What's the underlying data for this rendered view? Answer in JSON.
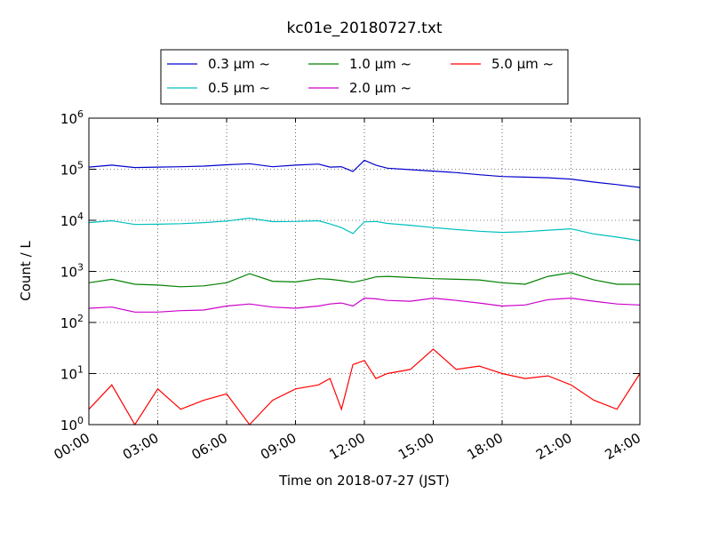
{
  "chart_data": {
    "type": "line",
    "title": "kc01e_20180727.txt",
    "xlabel": "Time on 2018-07-27 (JST)",
    "ylabel": "Count / L",
    "y_scale": "log",
    "ylim": [
      1,
      1000000
    ],
    "xlim": [
      "00:00",
      "24:00"
    ],
    "x_tick_labels": [
      "00:00",
      "03:00",
      "06:00",
      "09:00",
      "12:00",
      "15:00",
      "18:00",
      "21:00",
      "24:00"
    ],
    "y_ticks": [
      {
        "value": 1,
        "base": "10",
        "exp": "0"
      },
      {
        "value": 10,
        "base": "10",
        "exp": "1"
      },
      {
        "value": 100,
        "base": "10",
        "exp": "2"
      },
      {
        "value": 1000,
        "base": "10",
        "exp": "3"
      },
      {
        "value": 10000,
        "base": "10",
        "exp": "4"
      },
      {
        "value": 100000,
        "base": "10",
        "exp": "5"
      },
      {
        "value": 1000000,
        "base": "10",
        "exp": "6"
      }
    ],
    "grid": true,
    "legend_position": "top",
    "x": [
      "00:00",
      "01:00",
      "02:00",
      "03:00",
      "04:00",
      "05:00",
      "06:00",
      "07:00",
      "08:00",
      "09:00",
      "10:00",
      "10:30",
      "11:00",
      "11:30",
      "12:00",
      "12:30",
      "13:00",
      "14:00",
      "15:00",
      "16:00",
      "17:00",
      "18:00",
      "19:00",
      "20:00",
      "21:00",
      "22:00",
      "23:00",
      "24:00"
    ],
    "series": [
      {
        "name": "0.3 μm ~",
        "color": "#0000cc",
        "values": [
          110000,
          120000,
          108000,
          110000,
          112000,
          115000,
          122000,
          128000,
          112000,
          120000,
          126000,
          110000,
          112000,
          90000,
          150000,
          120000,
          105000,
          98000,
          92000,
          86000,
          78000,
          72000,
          70000,
          68000,
          64000,
          56000,
          50000,
          44000
        ]
      },
      {
        "name": "0.5 μm ~",
        "color": "#00bfbf",
        "values": [
          9000,
          9800,
          8300,
          8400,
          8600,
          9000,
          9700,
          11000,
          9400,
          9500,
          9800,
          8500,
          7200,
          5500,
          9300,
          9500,
          8700,
          8000,
          7200,
          6600,
          6100,
          5800,
          6000,
          6400,
          6800,
          5400,
          4700,
          4000
        ]
      },
      {
        "name": "1.0 μm ~",
        "color": "#008000",
        "values": [
          600,
          700,
          560,
          540,
          500,
          520,
          600,
          900,
          640,
          620,
          720,
          700,
          660,
          610,
          680,
          780,
          800,
          760,
          720,
          700,
          680,
          600,
          560,
          800,
          940,
          680,
          560,
          560
        ]
      },
      {
        "name": "2.0 μm ~",
        "color": "#cc00cc",
        "values": [
          190,
          200,
          160,
          160,
          170,
          175,
          210,
          230,
          200,
          190,
          210,
          230,
          240,
          210,
          300,
          290,
          270,
          260,
          300,
          270,
          240,
          210,
          220,
          280,
          300,
          260,
          230,
          220
        ]
      },
      {
        "name": "5.0 μm ~",
        "color": "#ff0000",
        "values": [
          2,
          6,
          1,
          5,
          2,
          3,
          4,
          1,
          3,
          5,
          6,
          8,
          2,
          15,
          18,
          8,
          10,
          12,
          30,
          12,
          14,
          10,
          8,
          9,
          6,
          3,
          2,
          10
        ]
      }
    ]
  }
}
